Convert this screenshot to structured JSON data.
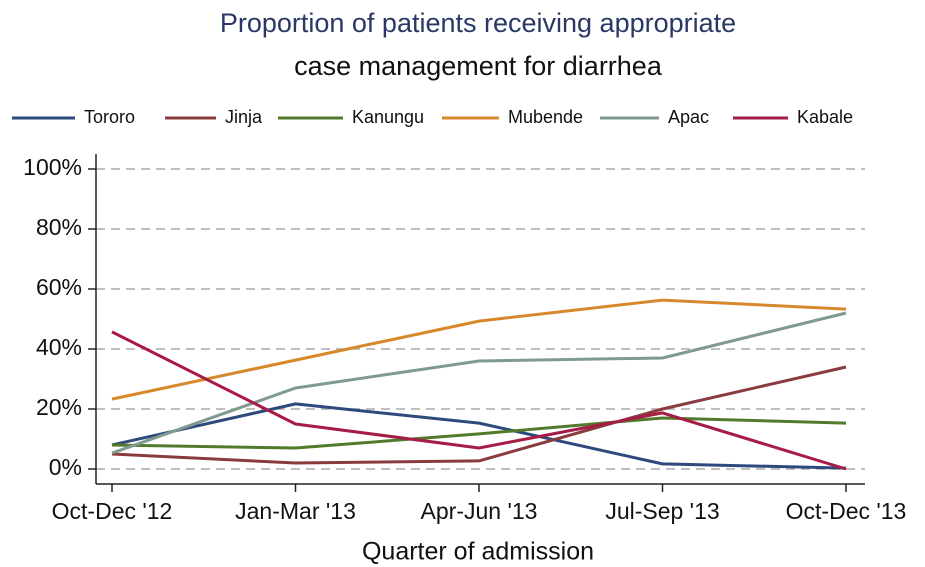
{
  "chart_data": {
    "type": "line",
    "title": [
      "Proportion of patients receiving appropriate",
      "case management for diarrhea"
    ],
    "x_label": "Quarter of admission",
    "categories": [
      "Oct-Dec '12",
      "Jan-Mar '13",
      "Apr-Jun '13",
      "Jul-Sep '13",
      "Oct-Dec '13"
    ],
    "series": [
      {
        "name": "Tororo",
        "color": "#2e4a7d",
        "values": [
          8,
          21.7,
          15.3,
          1.7,
          0.3
        ]
      },
      {
        "name": "Jinja",
        "color": "#8a3b3f",
        "values": [
          5,
          2,
          2.7,
          20,
          34
        ]
      },
      {
        "name": "Kanungu",
        "color": "#527a2c",
        "values": [
          8,
          7,
          11.7,
          17,
          15.3
        ]
      },
      {
        "name": "Mubende",
        "color": "#d8882c",
        "values": [
          23.3,
          36.3,
          49.3,
          56.3,
          53.3
        ]
      },
      {
        "name": "Apac",
        "color": "#7f9a8f",
        "values": [
          5.3,
          27,
          36,
          37,
          52
        ]
      },
      {
        "name": "Kabale",
        "color": "#a61c45",
        "values": [
          45.7,
          15,
          7,
          18.7,
          0
        ]
      }
    ],
    "ylim": [
      -5,
      105
    ],
    "yticks": [
      {
        "value": 0,
        "label": "0%"
      },
      {
        "value": 20,
        "label": "20%"
      },
      {
        "value": 40,
        "label": "40%"
      },
      {
        "value": 60,
        "label": "60%"
      },
      {
        "value": 80,
        "label": "80%"
      },
      {
        "value": 100,
        "label": "100%"
      }
    ],
    "grid": true,
    "legend": "top"
  }
}
